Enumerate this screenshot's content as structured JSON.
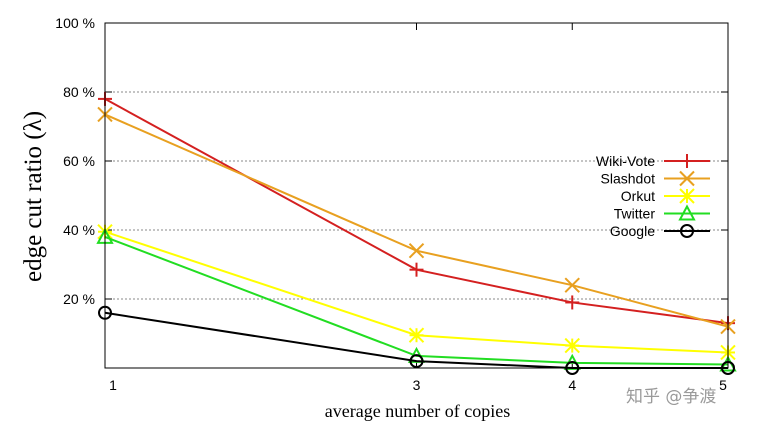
{
  "chart_data": {
    "type": "line",
    "title": "",
    "xlabel": "average number of copies",
    "ylabel": "edge cut ratio (λ)",
    "x": [
      1,
      3,
      4,
      5
    ],
    "x_ticks": [
      "1",
      "3",
      "4",
      "5"
    ],
    "xlim": [
      1,
      5
    ],
    "ylim": [
      0,
      100
    ],
    "y_ticks": [
      "20 %",
      "40 %",
      "60 %",
      "80 %",
      "100 %"
    ],
    "y_tick_values": [
      20,
      40,
      60,
      80,
      100
    ],
    "grid": true,
    "legend_position": "right",
    "series": [
      {
        "name": "Wiki-Vote",
        "color": "#d42020",
        "marker": "plus",
        "values": [
          78,
          28.5,
          19,
          13
        ]
      },
      {
        "name": "Slashdot",
        "color": "#e8a020",
        "marker": "x",
        "values": [
          73.5,
          34,
          24,
          12
        ]
      },
      {
        "name": "Orkut",
        "color": "#ffff00",
        "marker": "star",
        "values": [
          39.5,
          9.5,
          6.5,
          4.5
        ]
      },
      {
        "name": "Twitter",
        "color": "#22dd22",
        "marker": "triangle",
        "values": [
          38,
          3.5,
          1.5,
          1
        ]
      },
      {
        "name": "Google",
        "color": "#000000",
        "marker": "circle",
        "values": [
          16,
          2,
          0,
          0
        ]
      }
    ]
  },
  "watermark": "知乎 @争渡"
}
